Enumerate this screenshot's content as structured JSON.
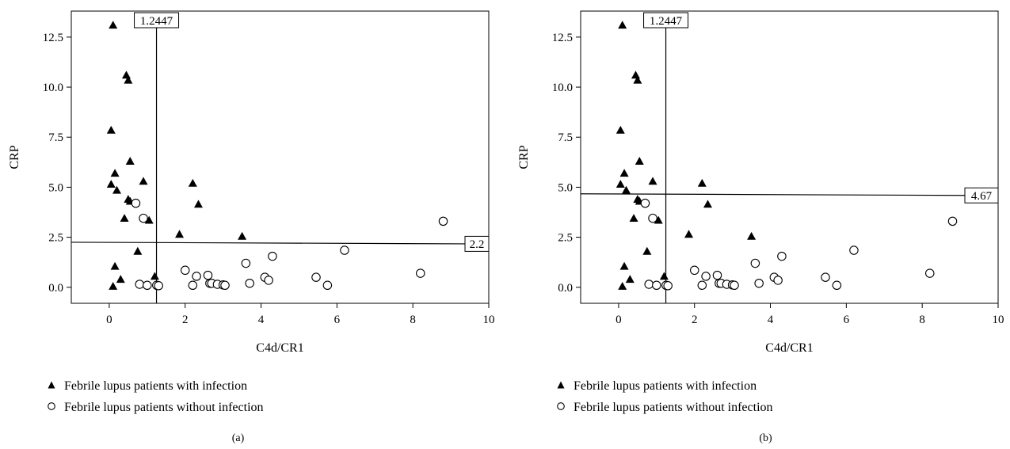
{
  "chart_data": [
    {
      "type": "scatter",
      "panel_label": "(a)",
      "xlabel": "C4d/CR1",
      "ylabel": "CRP",
      "xlim": [
        -1,
        10
      ],
      "ylim": [
        -0.8,
        13.8
      ],
      "xticks": [
        0,
        2,
        4,
        6,
        8,
        10
      ],
      "yticks": [
        0.0,
        2.5,
        5.0,
        7.5,
        10.0,
        12.5
      ],
      "xtick_labels": [
        "0",
        "2",
        "4",
        "6",
        "8",
        "10"
      ],
      "ytick_labels": [
        "0.0",
        "2.5",
        "5.0",
        "7.5",
        "10.0",
        "12.5"
      ],
      "cutoff_x": {
        "value": 1.2447,
        "label": "1.2447"
      },
      "cutoff_y": {
        "value": 2.25,
        "label": "2.2"
      },
      "grid": false,
      "legend_position": "bottom-left",
      "series": [
        {
          "name": "Febrile lupus patients with infection",
          "marker": "filled-triangle",
          "x": [
            0.1,
            0.45,
            0.5,
            0.05,
            0.15,
            0.05,
            0.2,
            0.55,
            0.9,
            0.5,
            0.55,
            0.4,
            1.05,
            0.75,
            0.15,
            0.3,
            0.1,
            1.2,
            2.2,
            2.35,
            1.85,
            3.5
          ],
          "y": [
            13.1,
            10.6,
            10.35,
            7.85,
            5.7,
            5.15,
            4.85,
            6.3,
            5.3,
            4.4,
            4.3,
            3.45,
            3.35,
            1.8,
            1.05,
            0.4,
            0.05,
            0.55,
            5.2,
            4.15,
            2.65,
            2.55
          ]
        },
        {
          "name": "Febrile lupus patients without infection",
          "marker": "open-circle",
          "x": [
            0.7,
            0.9,
            0.8,
            1.0,
            1.25,
            1.3,
            2.0,
            2.2,
            2.3,
            2.6,
            2.65,
            2.7,
            2.85,
            3.0,
            3.05,
            3.6,
            3.7,
            4.1,
            4.2,
            4.3,
            5.45,
            5.75,
            6.2,
            8.2,
            8.8
          ],
          "y": [
            4.2,
            3.45,
            0.15,
            0.1,
            0.1,
            0.08,
            0.85,
            0.1,
            0.55,
            0.6,
            0.2,
            0.2,
            0.15,
            0.12,
            0.1,
            1.2,
            0.2,
            0.5,
            0.35,
            1.55,
            0.5,
            0.1,
            1.85,
            0.7,
            3.3
          ]
        }
      ]
    },
    {
      "type": "scatter",
      "panel_label": "(b)",
      "xlabel": "C4d/CR1",
      "ylabel": "CRP",
      "xlim": [
        -1,
        10
      ],
      "ylim": [
        -0.8,
        13.8
      ],
      "xticks": [
        0,
        2,
        4,
        6,
        8,
        10
      ],
      "yticks": [
        0.0,
        2.5,
        5.0,
        7.5,
        10.0,
        12.5
      ],
      "xtick_labels": [
        "0",
        "2",
        "4",
        "6",
        "8",
        "10"
      ],
      "ytick_labels": [
        "0.0",
        "2.5",
        "5.0",
        "7.5",
        "10.0",
        "12.5"
      ],
      "cutoff_x": {
        "value": 1.2447,
        "label": "1.2447"
      },
      "cutoff_y": {
        "value": 4.67,
        "label": "4.67"
      },
      "grid": false,
      "legend_position": "bottom-left",
      "series": [
        {
          "name": "Febrile lupus patients with infection",
          "marker": "filled-triangle",
          "x": [
            0.1,
            0.45,
            0.5,
            0.05,
            0.15,
            0.05,
            0.2,
            0.55,
            0.9,
            0.5,
            0.55,
            0.4,
            1.05,
            0.75,
            0.15,
            0.3,
            0.1,
            1.2,
            2.2,
            2.35,
            1.85,
            3.5
          ],
          "y": [
            13.1,
            10.6,
            10.35,
            7.85,
            5.7,
            5.15,
            4.85,
            6.3,
            5.3,
            4.4,
            4.3,
            3.45,
            3.35,
            1.8,
            1.05,
            0.4,
            0.05,
            0.55,
            5.2,
            4.15,
            2.65,
            2.55
          ]
        },
        {
          "name": "Febrile lupus patients without infection",
          "marker": "open-circle",
          "x": [
            0.7,
            0.9,
            0.8,
            1.0,
            1.25,
            1.3,
            2.0,
            2.2,
            2.3,
            2.6,
            2.65,
            2.7,
            2.85,
            3.0,
            3.05,
            3.6,
            3.7,
            4.1,
            4.2,
            4.3,
            5.45,
            5.75,
            6.2,
            8.2,
            8.8
          ],
          "y": [
            4.2,
            3.45,
            0.15,
            0.1,
            0.1,
            0.08,
            0.85,
            0.1,
            0.55,
            0.6,
            0.2,
            0.2,
            0.15,
            0.12,
            0.1,
            1.2,
            0.2,
            0.5,
            0.35,
            1.55,
            0.5,
            0.1,
            1.85,
            0.7,
            3.3
          ]
        }
      ]
    }
  ]
}
